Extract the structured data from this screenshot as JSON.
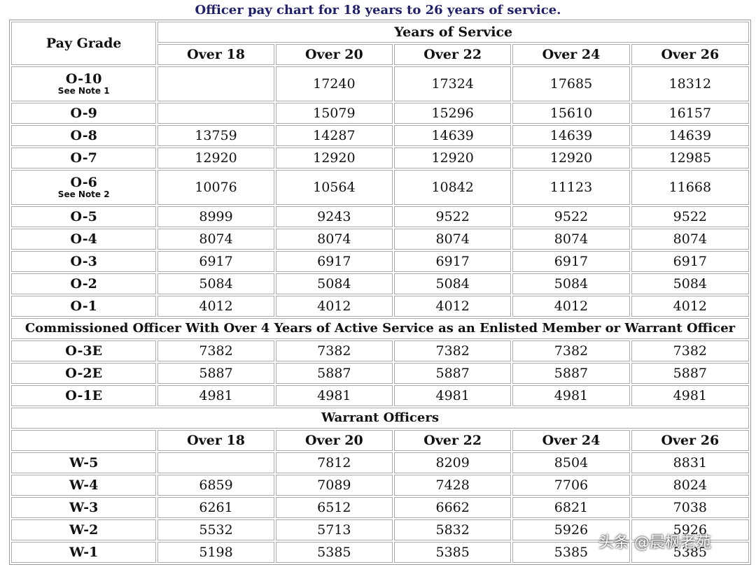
{
  "title": "Officer pay chart for 18 years to 26 years of service.",
  "table": {
    "officers": {
      "pay_grade_header": "Pay Grade",
      "years_header": "Years of Service",
      "columns": [
        "Over 18",
        "Over 20",
        "Over 22",
        "Over 24",
        "Over 26"
      ],
      "rows": [
        {
          "grade": "O-10",
          "note": "See Note 1",
          "values": [
            null,
            17240,
            17324,
            17685,
            18312
          ]
        },
        {
          "grade": "O-9",
          "values": [
            null,
            15079,
            15296,
            15610,
            16157
          ]
        },
        {
          "grade": "O-8",
          "values": [
            13759,
            14287,
            14639,
            14639,
            14639
          ]
        },
        {
          "grade": "O-7",
          "values": [
            12920,
            12920,
            12920,
            12920,
            12985
          ]
        },
        {
          "grade": "O-6",
          "note": "See Note 2",
          "values": [
            10076,
            10564,
            10842,
            11123,
            11668
          ]
        },
        {
          "grade": "O-5",
          "values": [
            8999,
            9243,
            9522,
            9522,
            9522
          ]
        },
        {
          "grade": "O-4",
          "values": [
            8074,
            8074,
            8074,
            8074,
            8074
          ]
        },
        {
          "grade": "O-3",
          "values": [
            6917,
            6917,
            6917,
            6917,
            6917
          ]
        },
        {
          "grade": "O-2",
          "values": [
            5084,
            5084,
            5084,
            5084,
            5084
          ]
        },
        {
          "grade": "O-1",
          "values": [
            4012,
            4012,
            4012,
            4012,
            4012
          ]
        }
      ]
    },
    "enlisted_prior": {
      "title": "Commissioned Officer With Over 4 Years of Active Service as an Enlisted Member or Warrant Officer",
      "rows": [
        {
          "grade": "O-3E",
          "values": [
            7382,
            7382,
            7382,
            7382,
            7382
          ]
        },
        {
          "grade": "O-2E",
          "values": [
            5887,
            5887,
            5887,
            5887,
            5887
          ]
        },
        {
          "grade": "O-1E",
          "values": [
            4981,
            4981,
            4981,
            4981,
            4981
          ]
        }
      ]
    },
    "warrant": {
      "title": "Warrant Officers",
      "columns": [
        "Over 18",
        "Over 20",
        "Over 22",
        "Over 24",
        "Over 26"
      ],
      "rows": [
        {
          "grade": "W-5",
          "values": [
            null,
            7812,
            8209,
            8504,
            8831
          ]
        },
        {
          "grade": "W-4",
          "values": [
            6859,
            7089,
            7428,
            7706,
            8024
          ]
        },
        {
          "grade": "W-3",
          "values": [
            6261,
            6512,
            6662,
            6821,
            7038
          ]
        },
        {
          "grade": "W-2",
          "values": [
            5532,
            5713,
            5832,
            5926,
            5926
          ]
        },
        {
          "grade": "W-1",
          "values": [
            5198,
            5385,
            5385,
            5385,
            5385
          ]
        }
      ]
    }
  },
  "watermark": "头条 @晨枫老苑"
}
